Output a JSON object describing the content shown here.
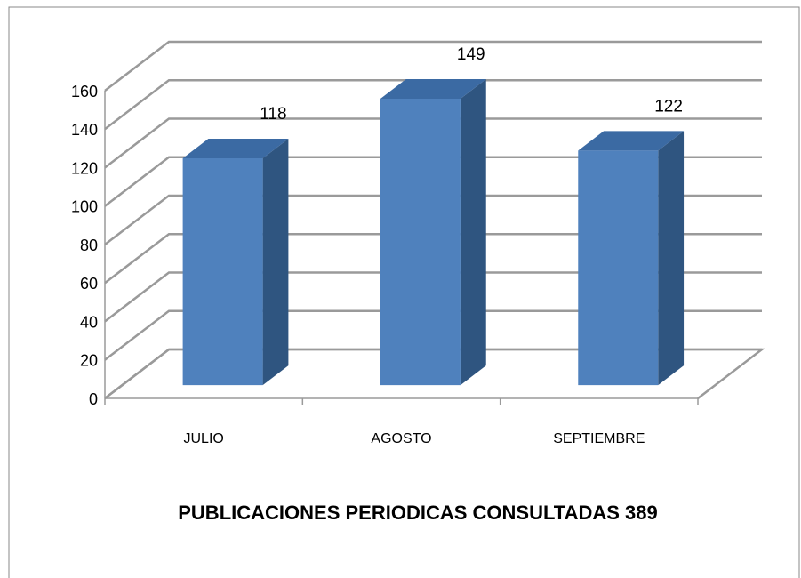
{
  "chart_data": {
    "type": "bar3d",
    "title": "PUBLICACIONES PERIODICAS CONSULTADAS 389",
    "categories": [
      "JULIO",
      "AGOSTO",
      "SEPTIEMBRE"
    ],
    "values": [
      118,
      149,
      122
    ],
    "color": "#4f81bd",
    "ylim": [
      0,
      160
    ],
    "yticks": [
      0,
      20,
      40,
      60,
      80,
      100,
      120,
      140,
      160
    ],
    "grid": true
  }
}
